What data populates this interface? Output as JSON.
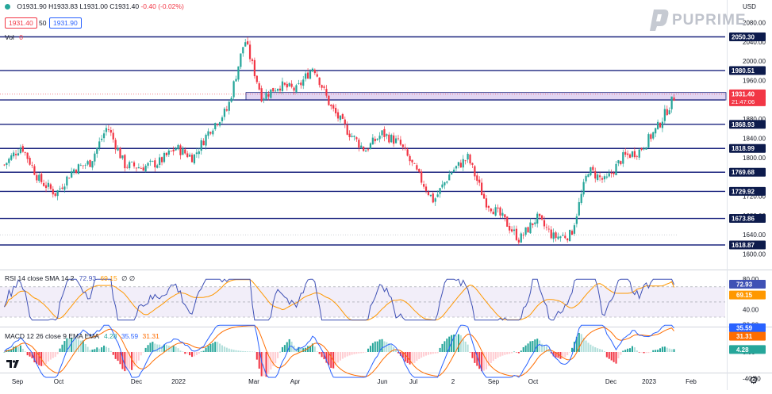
{
  "header": {
    "ohlc": {
      "o_label": "O",
      "o": "1931.90",
      "h_label": "H",
      "h": "1933.83",
      "l_label": "L",
      "l": "1931.00",
      "c_label": "C",
      "c": "1931.40",
      "chg": "-0.40 (-0.02%)"
    },
    "sell_price": "1931.40",
    "spread": "50",
    "buy_price": "1931.90",
    "vol_label": "Vol",
    "vol_value": "0",
    "currency": "USD"
  },
  "brand": {
    "name": "PUPRIME"
  },
  "colors": {
    "up": "#26a69a",
    "down": "#f23645",
    "level_line": "#1a237e",
    "rsi_line": "#3f51b5",
    "sma_line": "#ff9800",
    "macd_line": "#2962ff",
    "signal_line": "#ff6d00",
    "band_fill": "#ede7f6",
    "zone_fill": "#e1d5f2"
  },
  "price_axis": {
    "ticks": [
      "2080.00",
      "2040.00",
      "2000.00",
      "1960.00",
      "1880.00",
      "1840.00",
      "1800.00",
      "1720.00",
      "1680.00",
      "1640.00",
      "1600.00"
    ]
  },
  "levels": [
    {
      "value": 2050.3,
      "label": "2050.30"
    },
    {
      "value": 1980.51,
      "label": "1980.51"
    },
    {
      "value": 1919.48,
      "label": "1919.48"
    },
    {
      "value": 1868.93,
      "label": "1868.93"
    },
    {
      "value": 1818.99,
      "label": "1818.99"
    },
    {
      "value": 1769.68,
      "label": "1769.68"
    },
    {
      "value": 1729.92,
      "label": "1729.92"
    },
    {
      "value": 1673.86,
      "label": "1673.86"
    },
    {
      "value": 1618.87,
      "label": "1618.87"
    }
  ],
  "current_price": {
    "label": "1931.40",
    "countdown": "21:47:06"
  },
  "rsi": {
    "title": "RSI 14 close SMA 14 2",
    "value": "72.93",
    "sma": "69.15",
    "flags": "∅ ∅",
    "ticks": [
      "80.00",
      "40.00",
      "20.00"
    ],
    "label_value": "72.93",
    "label_sma": "69.15"
  },
  "macd": {
    "title": "MACD 12 26 close 9 EMA EMA",
    "hist": "4.28",
    "macd": "35.59",
    "signal": "31.31",
    "ticks": [
      "0.00",
      "-40.00"
    ],
    "label_macd": "35.59",
    "label_signal": "31.31",
    "label_hist": "4.28"
  },
  "time_axis": {
    "labels": [
      "Sep",
      "Oct",
      "Dec",
      "2022",
      "Mar",
      "Apr",
      "Jun",
      "Jul",
      "2",
      "Sep",
      "Oct",
      "Dec",
      "2023",
      "Feb"
    ]
  },
  "chart_data": {
    "type": "candlestick",
    "title": "",
    "symbol_ohlc": {
      "open": 1931.9,
      "high": 1933.83,
      "low": 1931.0,
      "close": 1931.4
    },
    "y_range": [
      1595,
      2090
    ],
    "close_path": [
      {
        "x": "2021-09",
        "y": 1785
      },
      {
        "x": "2021-09",
        "y": 1825
      },
      {
        "x": "2021-10",
        "y": 1755
      },
      {
        "x": "2021-10",
        "y": 1725
      },
      {
        "x": "2021-10",
        "y": 1775
      },
      {
        "x": "2021-11",
        "y": 1790
      },
      {
        "x": "2021-11",
        "y": 1865
      },
      {
        "x": "2021-11",
        "y": 1785
      },
      {
        "x": "2021-12",
        "y": 1780
      },
      {
        "x": "2021-12",
        "y": 1790
      },
      {
        "x": "2022-01",
        "y": 1820
      },
      {
        "x": "2022-01",
        "y": 1800
      },
      {
        "x": "2022-02",
        "y": 1860
      },
      {
        "x": "2022-02",
        "y": 1900
      },
      {
        "x": "2022-03",
        "y": 2045
      },
      {
        "x": "2022-03",
        "y": 1925
      },
      {
        "x": "2022-03",
        "y": 1950
      },
      {
        "x": "2022-04",
        "y": 1940
      },
      {
        "x": "2022-04",
        "y": 1990
      },
      {
        "x": "2022-04",
        "y": 1905
      },
      {
        "x": "2022-05",
        "y": 1855
      },
      {
        "x": "2022-05",
        "y": 1815
      },
      {
        "x": "2022-06",
        "y": 1850
      },
      {
        "x": "2022-06",
        "y": 1830
      },
      {
        "x": "2022-07",
        "y": 1770
      },
      {
        "x": "2022-07",
        "y": 1710
      },
      {
        "x": "2022-08",
        "y": 1770
      },
      {
        "x": "2022-08",
        "y": 1800
      },
      {
        "x": "2022-09",
        "y": 1710
      },
      {
        "x": "2022-09",
        "y": 1675
      },
      {
        "x": "2022-10",
        "y": 1630
      },
      {
        "x": "2022-10",
        "y": 1675
      },
      {
        "x": "2022-10",
        "y": 1635
      },
      {
        "x": "2022-11",
        "y": 1640
      },
      {
        "x": "2022-11",
        "y": 1775
      },
      {
        "x": "2022-11",
        "y": 1750
      },
      {
        "x": "2022-12",
        "y": 1800
      },
      {
        "x": "2022-12",
        "y": 1815
      },
      {
        "x": "2023-01",
        "y": 1860
      },
      {
        "x": "2023-01",
        "y": 1925
      }
    ]
  }
}
